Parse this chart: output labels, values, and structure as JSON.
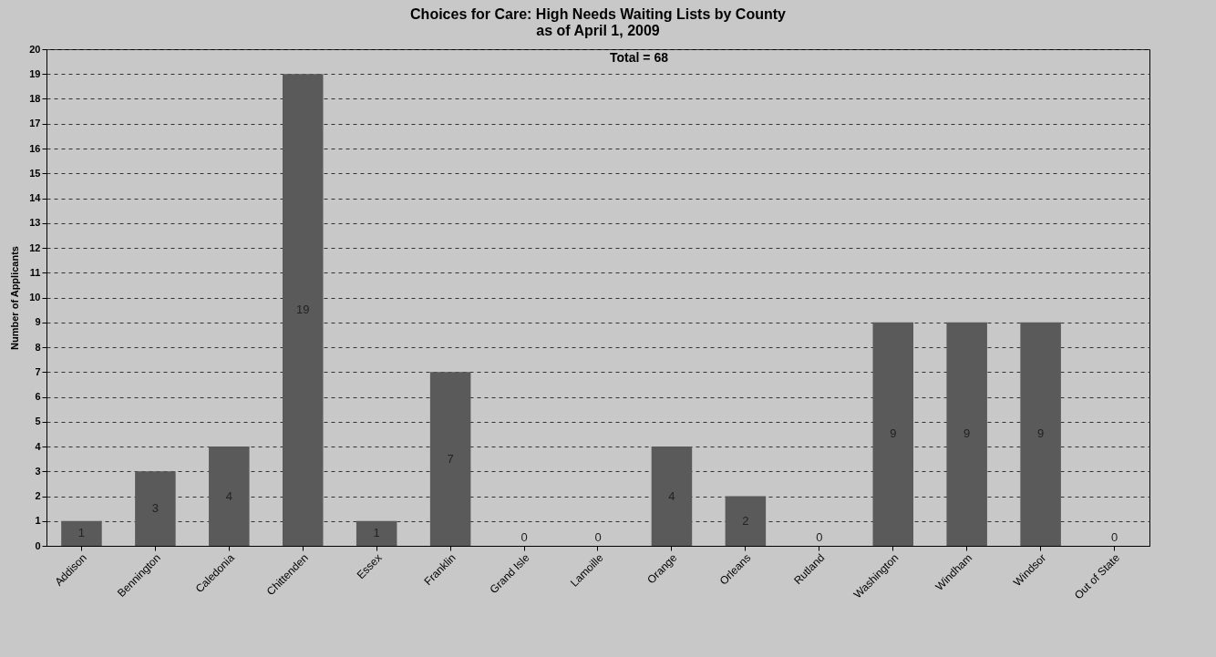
{
  "chart_data": {
    "type": "bar",
    "title": [
      "Choices for Care:  High Needs Waiting Lists by County",
      "as of April 1, 2009"
    ],
    "ylabel": "Number of Applicants",
    "categories": [
      "Addison",
      "Bennington",
      "Caledonia",
      "Chittenden",
      "Essex",
      "Franklin",
      "Grand Isle",
      "Lamoille",
      "Orange",
      "Orleans",
      "Rutland",
      "Washington",
      "Windham",
      "Windsor",
      "Out of State"
    ],
    "values": [
      1,
      3,
      4,
      19,
      1,
      7,
      0,
      0,
      4,
      2,
      0,
      9,
      9,
      9,
      0
    ],
    "color": "#5a5a5a",
    "ylim": [
      0,
      20
    ],
    "yticks": [
      0,
      1,
      2,
      3,
      4,
      5,
      6,
      7,
      8,
      9,
      10,
      11,
      12,
      13,
      14,
      15,
      16,
      17,
      18,
      19,
      20
    ],
    "grid": "y",
    "line_style": "dashed",
    "data_labels": true,
    "annotations": [
      "Total = 68"
    ]
  }
}
